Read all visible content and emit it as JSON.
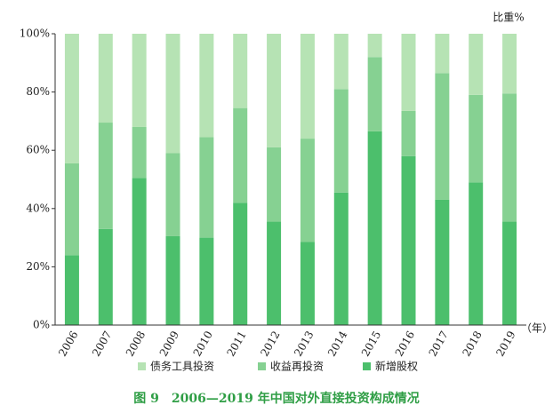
{
  "chart_data": {
    "type": "stacked-bar",
    "y_axis_label": "比重%",
    "x_axis_label": "（年）",
    "caption": "图 9　2006—2019 年中国对外直接投资构成情况",
    "categories": [
      "2006",
      "2007",
      "2008",
      "2009",
      "2010",
      "2011",
      "2012",
      "2013",
      "2014",
      "2015",
      "2016",
      "2017",
      "2018",
      "2019"
    ],
    "series": [
      {
        "name": "债务工具投资",
        "color": "#b6e3b4",
        "values": [
          44.5,
          30.5,
          32,
          41,
          35.5,
          25.5,
          39,
          36,
          19,
          8,
          26.5,
          13.5,
          21,
          20.5
        ]
      },
      {
        "name": "收益再投资",
        "color": "#86d192",
        "values": [
          31.5,
          36.5,
          17.5,
          28.5,
          34.5,
          32.5,
          25.5,
          35.5,
          35.5,
          25.5,
          15.5,
          43.5,
          30,
          44
        ]
      },
      {
        "name": "新增股权",
        "color": "#4cbf6c",
        "values": [
          24,
          33,
          50.5,
          30.5,
          30,
          42,
          35.5,
          28.5,
          45.5,
          66.5,
          58,
          43,
          49,
          35.5
        ]
      }
    ],
    "ylim": [
      0,
      100
    ],
    "yticks": [
      {
        "value": 0,
        "label": "0%"
      },
      {
        "value": 20,
        "label": "20%"
      },
      {
        "value": 40,
        "label": "40%"
      },
      {
        "value": 60,
        "label": "60%"
      },
      {
        "value": 80,
        "label": "80%"
      },
      {
        "value": 100,
        "label": "100%"
      }
    ]
  }
}
